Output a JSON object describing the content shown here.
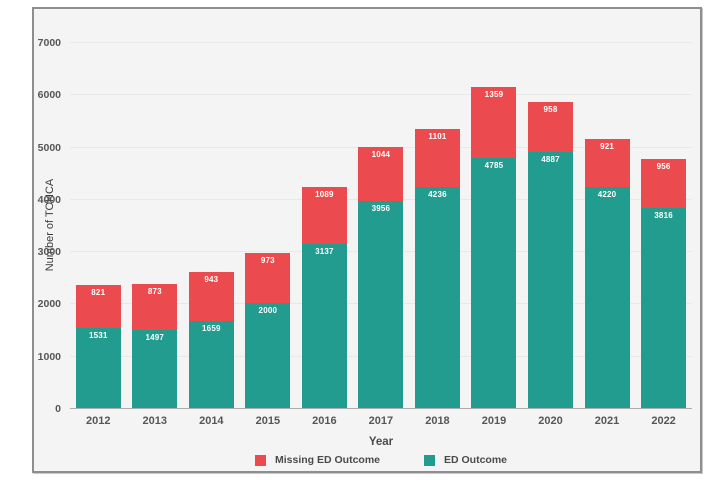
{
  "chart_data": {
    "type": "bar",
    "stacked": true,
    "title": "",
    "xlabel": "Year",
    "ylabel": "Number of TOHCA",
    "categories": [
      "2012",
      "2013",
      "2014",
      "2015",
      "2016",
      "2017",
      "2018",
      "2019",
      "2020",
      "2021",
      "2022"
    ],
    "series": [
      {
        "name": "ED Outcome",
        "color": "#219c8f",
        "values": [
          1531,
          1497,
          1659,
          2000,
          3137,
          3956,
          4236,
          4785,
          4887,
          4220,
          3816
        ]
      },
      {
        "name": "Missing ED Outcome",
        "color": "#eb4b4e",
        "values": [
          821,
          873,
          943,
          973,
          1089,
          1044,
          1101,
          1359,
          958,
          921,
          956
        ]
      }
    ],
    "ylim": [
      0,
      7000
    ],
    "yticks": [
      0,
      1000,
      2000,
      3000,
      4000,
      5000,
      6000,
      7000
    ],
    "grid": true,
    "legend_position": "bottom",
    "legend_order": [
      "Missing ED Outcome",
      "ED Outcome"
    ],
    "bar_value_labels_color": "#ffffff",
    "plot_background": "#f5f4f5",
    "frame_border_color": "#8e8e8e",
    "gridline_color": "#e8e8e8",
    "tick_label_color": "#565656"
  }
}
